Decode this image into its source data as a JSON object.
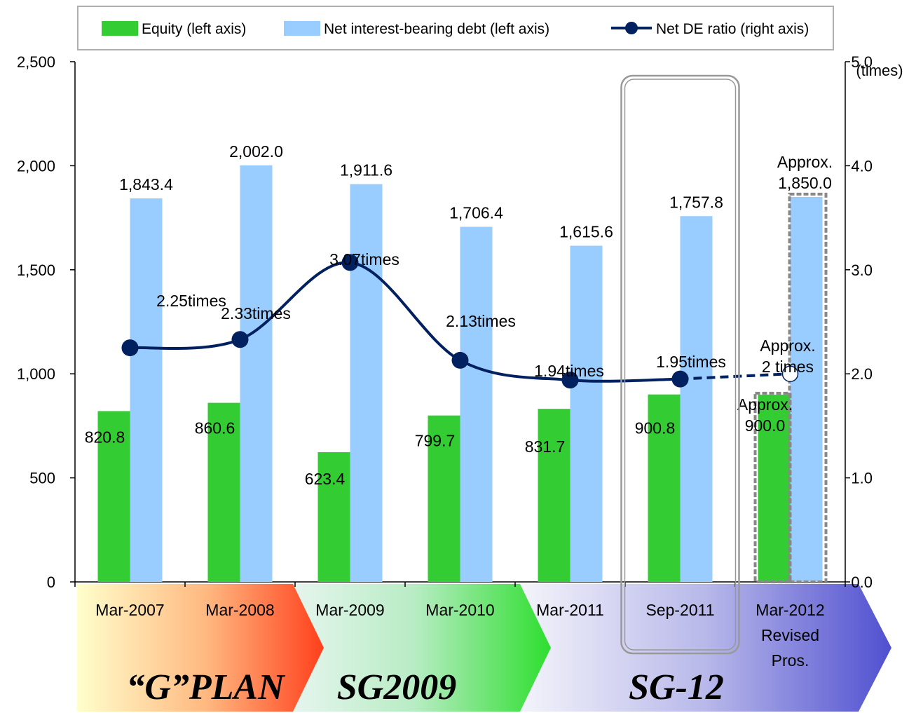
{
  "chart_data": {
    "type": "bar",
    "categories": [
      [
        "Mar-2007"
      ],
      [
        "Mar-2008"
      ],
      [
        "Mar-2009"
      ],
      [
        "Mar-2010"
      ],
      [
        "Mar-2011"
      ],
      [
        "Sep-2011"
      ],
      [
        "Mar-2012",
        "Revised",
        "Pros."
      ]
    ],
    "series": [
      {
        "name": "Equity (left axis)",
        "kind": "bar",
        "axis": "left",
        "color": "#33cc33",
        "values": [
          820.8,
          860.6,
          623.4,
          799.7,
          831.7,
          900.8,
          900.0
        ],
        "labels": [
          [
            "820.8"
          ],
          [
            "860.6"
          ],
          [
            "623.4"
          ],
          [
            "799.7"
          ],
          [
            "831.7"
          ],
          [
            "900.8"
          ],
          [
            "Approx.",
            "900.0"
          ]
        ]
      },
      {
        "name": "Net interest-bearing debt (left axis)",
        "kind": "bar",
        "axis": "left",
        "color": "#99ccff",
        "values": [
          1843.4,
          2002.0,
          1911.6,
          1706.4,
          1615.6,
          1757.8,
          1850.0
        ],
        "labels": [
          [
            "1,843.4"
          ],
          [
            "2,002.0"
          ],
          [
            "1,911.6"
          ],
          [
            "1,706.4"
          ],
          [
            "1,615.6"
          ],
          [
            "1,757.8"
          ],
          [
            "Approx.",
            "1,850.0"
          ]
        ]
      },
      {
        "name": "Net DE ratio (right axis)",
        "kind": "line",
        "axis": "right",
        "color": "#002060",
        "values": [
          2.25,
          2.33,
          3.07,
          2.13,
          1.94,
          1.95,
          2.0
        ],
        "labels": [
          [
            "2.25times"
          ],
          [
            "2.33times"
          ],
          [
            "3.07times"
          ],
          [
            "2.13times"
          ],
          [
            "1.94times"
          ],
          [
            "1.95times"
          ],
          [
            "Approx.",
            "2 times"
          ]
        ]
      }
    ],
    "y_left": {
      "ylim": [
        0,
        2500
      ],
      "ticks": [
        "0",
        "500",
        "1,000",
        "1,500",
        "2,000",
        "2,500"
      ]
    },
    "y_right": {
      "label": "(times)",
      "ylim": [
        0,
        5.0
      ],
      "ticks": [
        "0.0",
        "1.0",
        "2.0",
        "3.0",
        "4.0",
        "5.0"
      ]
    },
    "legend_position": "top",
    "highlighted_category": "Sep-2011",
    "forecast_category": "Mar-2012 Revised Pros.",
    "plans": [
      {
        "name": "“G”PLAN",
        "from": "Mar-2007",
        "to": "Mar-2008"
      },
      {
        "name": "SG2009",
        "from": "Mar-2009",
        "to": "Mar-2010"
      },
      {
        "name": "SG-12",
        "from": "Mar-2011",
        "to": "Mar-2012"
      }
    ]
  }
}
